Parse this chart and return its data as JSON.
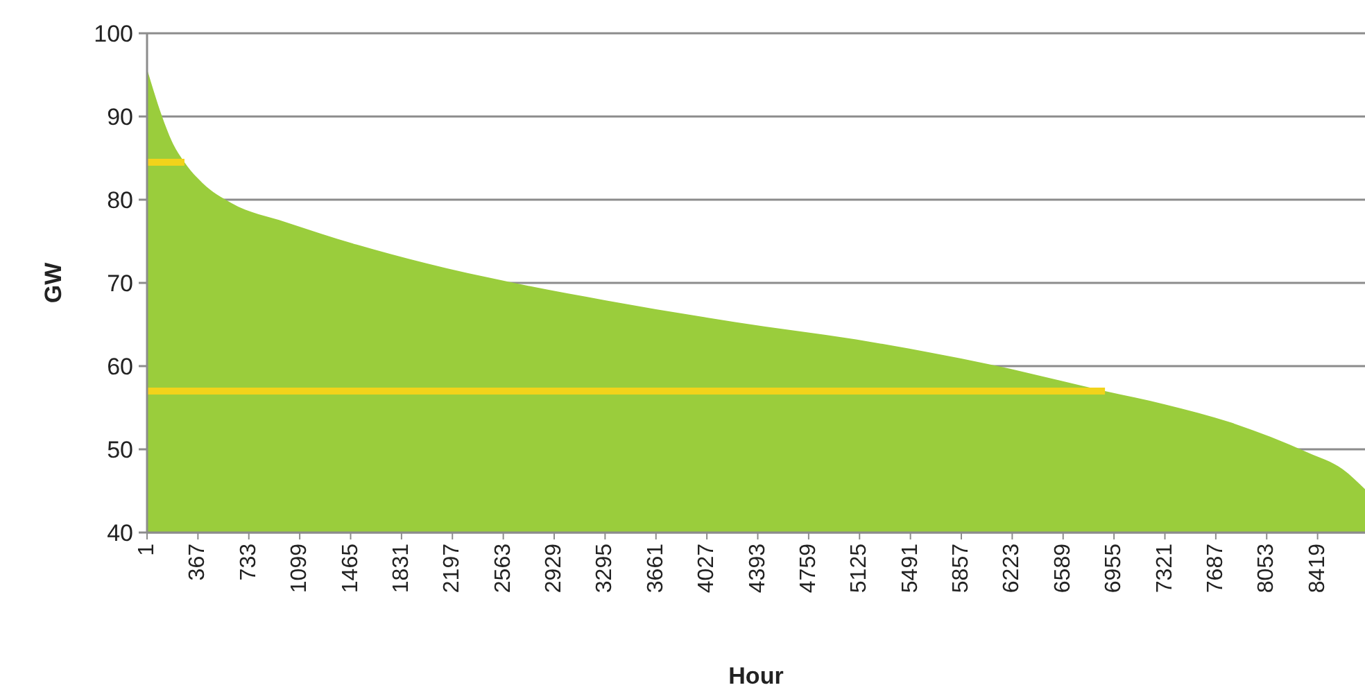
{
  "chart_data": {
    "type": "area",
    "xlabel": "Hour",
    "ylabel": "GW",
    "xlim": [
      1,
      8760
    ],
    "ylim": [
      40,
      100
    ],
    "yticks": [
      40,
      50,
      60,
      70,
      80,
      90,
      100
    ],
    "xticks": [
      1,
      367,
      733,
      1099,
      1465,
      1831,
      2197,
      2563,
      2929,
      3295,
      3661,
      4027,
      4393,
      4759,
      5125,
      5491,
      5857,
      6223,
      6589,
      6955,
      7321,
      7687,
      8053,
      8419
    ],
    "grid": "y",
    "series": [
      {
        "color": "#9acd3c",
        "x": [
          1,
          50,
          107,
          180,
          270,
          400,
          607,
          1000,
          1510,
          2000,
          2610,
          3300,
          4230,
          5100,
          6090,
          6890,
          7321,
          7800,
          8350,
          8600,
          8760
        ],
        "values": [
          95.7,
          93,
          90.1,
          87,
          84.5,
          82,
          79.6,
          77.3,
          74.6,
          72.4,
          70.1,
          67.9,
          65.3,
          63.2,
          60.1,
          57,
          55.4,
          53.2,
          49.6,
          47.6,
          45.2
        ]
      },
      {
        "type": "line",
        "color": "#f2d31b",
        "x": [
          1,
          270
        ],
        "values": [
          84.5,
          84.5
        ]
      },
      {
        "type": "line",
        "color": "#f2d31b",
        "x": [
          1,
          6890
        ],
        "values": [
          57,
          57
        ]
      }
    ]
  }
}
